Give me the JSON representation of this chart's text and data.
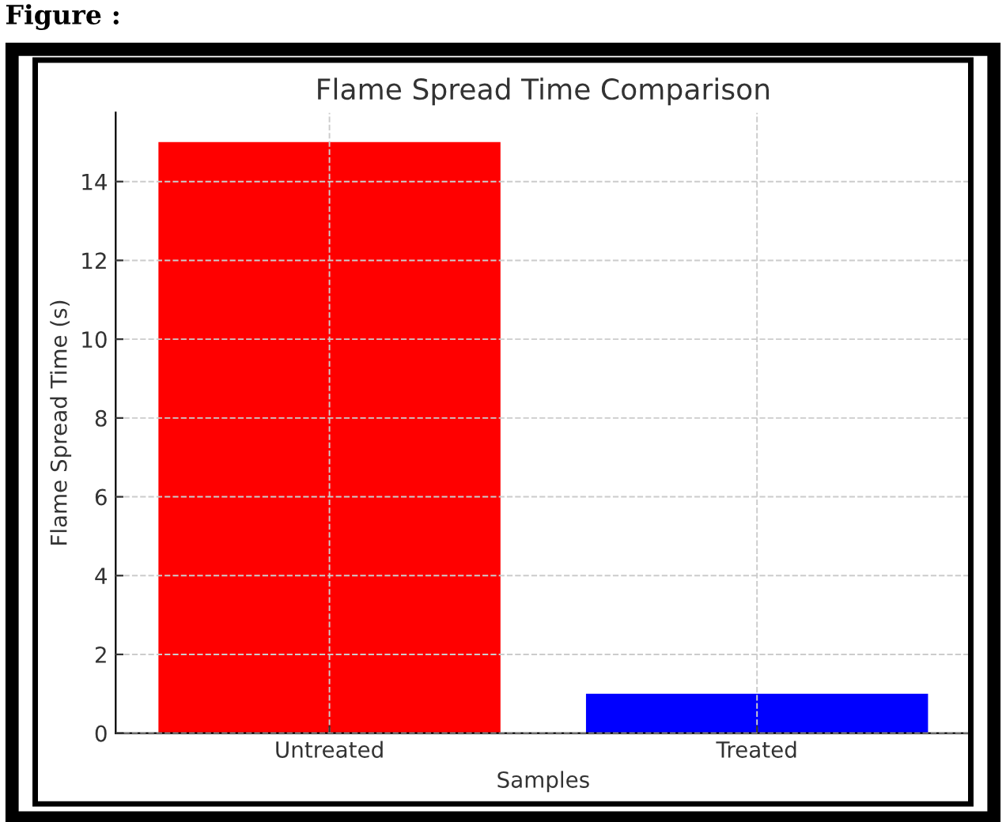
{
  "chart_data": {
    "type": "bar",
    "title": "Flame Spread Time Comparison",
    "xlabel": "Samples",
    "ylabel": "Flame Spread Time (s)",
    "categories": [
      "Untreated",
      "Treated"
    ],
    "values": [
      15,
      1
    ],
    "colors": [
      "#ff0000",
      "#0000ff"
    ],
    "ylim": [
      0,
      15.75
    ],
    "yticks": [
      0,
      2,
      4,
      6,
      8,
      10,
      12,
      14
    ],
    "grid": true,
    "annotations": [
      "Figure :"
    ]
  }
}
